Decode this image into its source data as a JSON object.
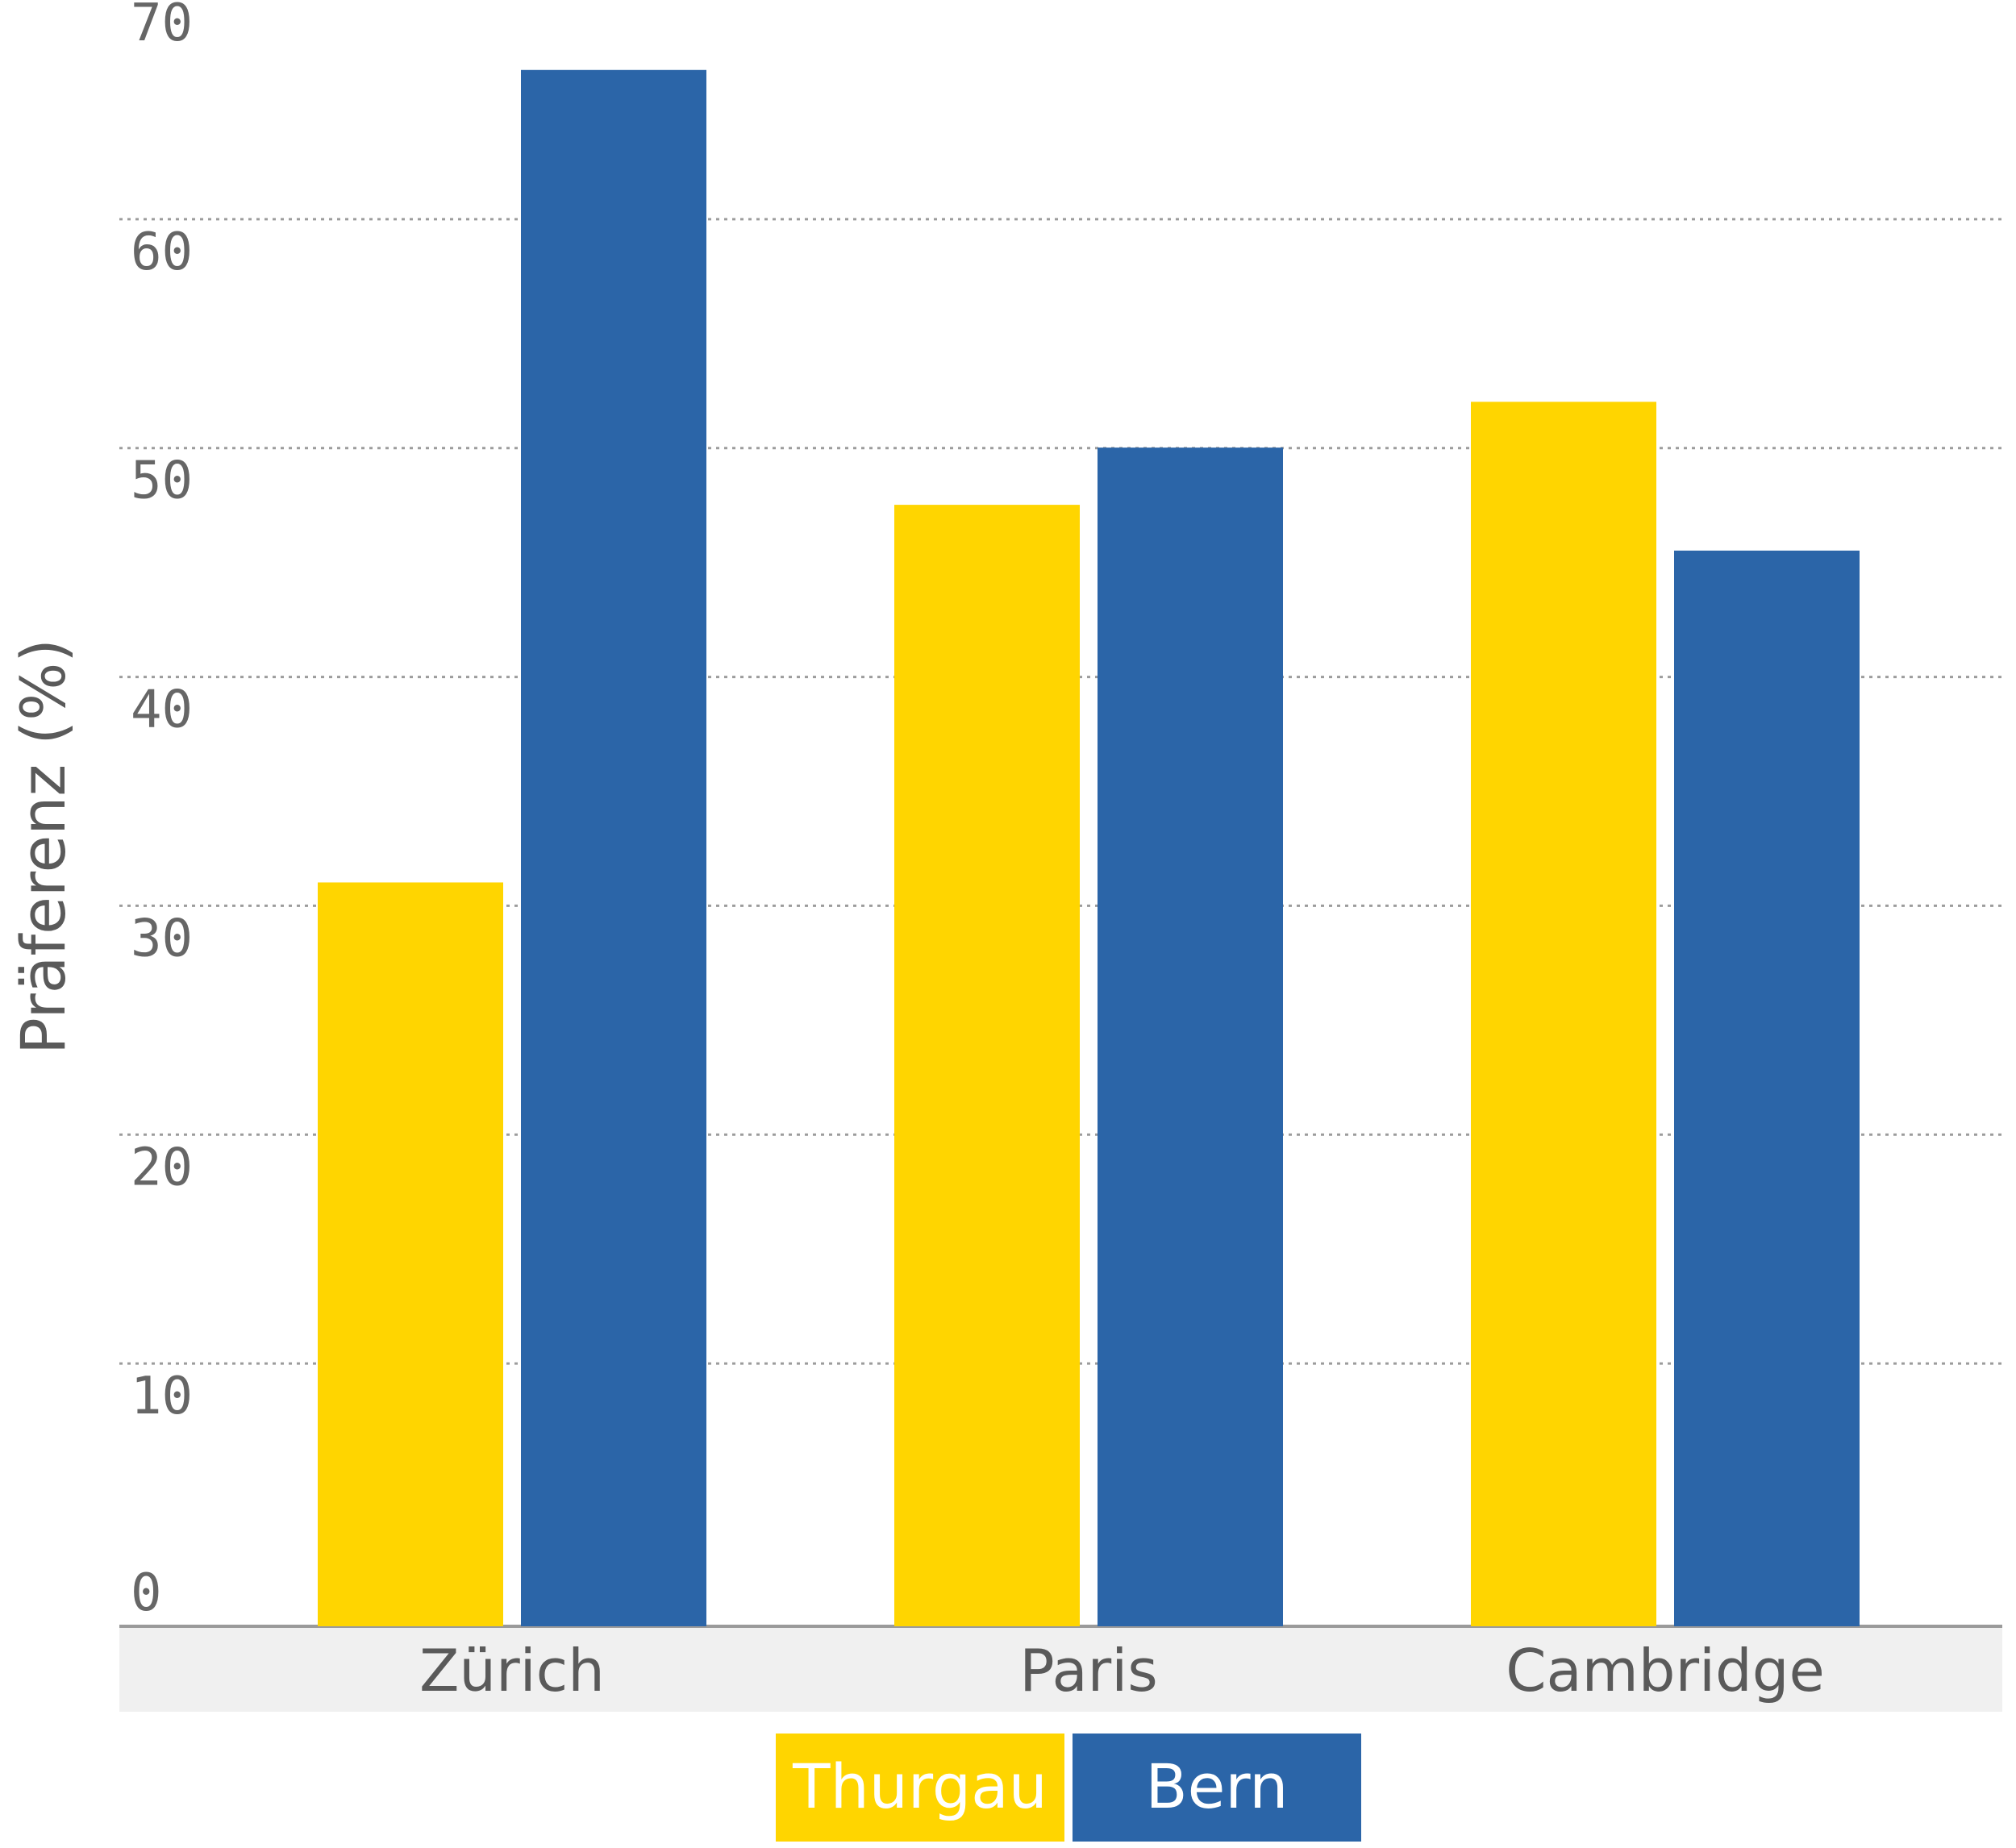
{
  "chart_data": {
    "type": "bar",
    "title": "",
    "xlabel": "",
    "ylabel": "Präferenz (%)",
    "categories": [
      "Zürich",
      "Paris",
      "Cambridge"
    ],
    "series": [
      {
        "name": "Thurgau",
        "color": "#FFD500",
        "values": [
          32.5,
          49,
          53.5
        ]
      },
      {
        "name": "Bern",
        "color": "#2B65A8",
        "values": [
          68,
          51.5,
          47
        ]
      }
    ],
    "ylim": [
      0,
      70
    ],
    "yticks": [
      0,
      10,
      20,
      30,
      40,
      50,
      60,
      70
    ],
    "grid": true,
    "legend_position": "bottom-center"
  }
}
